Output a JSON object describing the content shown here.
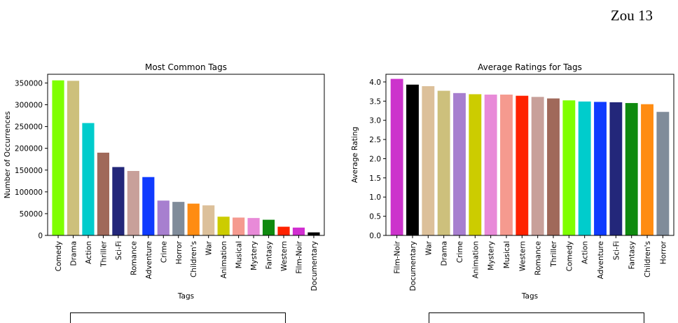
{
  "page": {
    "number_label": "Zou 13"
  },
  "chart_data": [
    {
      "type": "bar",
      "title": "Most Common Tags",
      "xlabel": "Tags",
      "ylabel": "Number of Occurrences",
      "ylim": [
        0,
        370000
      ],
      "yticks": [
        0,
        50000,
        100000,
        150000,
        200000,
        250000,
        300000,
        350000
      ],
      "ytick_labels": [
        "0",
        "50000",
        "100000",
        "150000",
        "200000",
        "250000",
        "300000",
        "350000"
      ],
      "categories": [
        "Comedy",
        "Drama",
        "Action",
        "Thriller",
        "Sci-Fi",
        "Romance",
        "Adventure",
        "Crime",
        "Horror",
        "Children's",
        "War",
        "Animation",
        "Musical",
        "Mystery",
        "Fantasy",
        "Western",
        "Film-Noir",
        "Documentary"
      ],
      "values": [
        356000,
        355000,
        258000,
        190000,
        157000,
        148000,
        134000,
        80000,
        77000,
        73000,
        69000,
        43000,
        41000,
        40000,
        36000,
        20000,
        18000,
        7000
      ],
      "colors": [
        "#7fff00",
        "#cdc07c",
        "#00cccc",
        "#a0695a",
        "#23277a",
        "#c8a09a",
        "#0f3bff",
        "#a77fcf",
        "#808c9a",
        "#ff8c12",
        "#dcc09a",
        "#cccc00",
        "#f59a8f",
        "#e88ad8",
        "#0f8a0f",
        "#ff2200",
        "#d12ed1",
        "#000000"
      ],
      "grid": false
    },
    {
      "type": "bar",
      "title": "Average Ratings for Tags",
      "xlabel": "Tags",
      "ylabel": "Average Rating",
      "ylim": [
        0,
        4.2
      ],
      "yticks": [
        0,
        0.5,
        1.0,
        1.5,
        2.0,
        2.5,
        3.0,
        3.5,
        4.0
      ],
      "ytick_labels": [
        "0.0",
        "0.5",
        "1.0",
        "1.5",
        "2.0",
        "2.5",
        "3.0",
        "3.5",
        "4.0"
      ],
      "categories": [
        "Film-Noir",
        "Documentary",
        "War",
        "Drama",
        "Crime",
        "Animation",
        "Mystery",
        "Musical",
        "Western",
        "Romance",
        "Thriller",
        "Comedy",
        "Action",
        "Adventure",
        "Sci-Fi",
        "Fantasy",
        "Children's",
        "Horror"
      ],
      "values": [
        4.08,
        3.93,
        3.89,
        3.77,
        3.71,
        3.68,
        3.67,
        3.67,
        3.64,
        3.61,
        3.57,
        3.52,
        3.49,
        3.48,
        3.47,
        3.45,
        3.42,
        3.22
      ],
      "colors": [
        "#cc33cc",
        "#000000",
        "#dcc09a",
        "#cdc07c",
        "#a77fcf",
        "#cccc00",
        "#e88ad8",
        "#f59a8f",
        "#ff2200",
        "#c8a09a",
        "#a0695a",
        "#7fff00",
        "#00cccc",
        "#0f3bff",
        "#23277a",
        "#0f8a0f",
        "#ff8c12",
        "#808c9a"
      ],
      "grid": false
    }
  ]
}
